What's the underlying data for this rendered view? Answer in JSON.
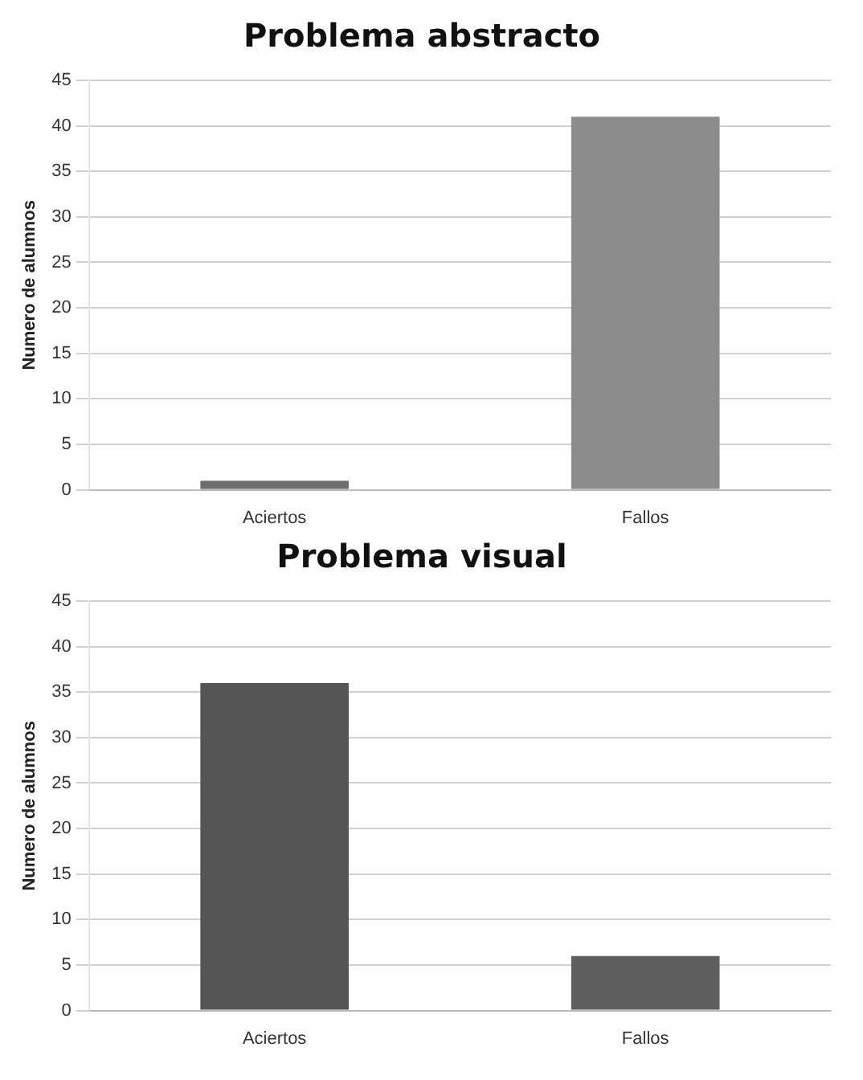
{
  "chart_data": [
    {
      "type": "bar",
      "title": "Problema abstracto",
      "ylabel": "Numero de alumnos",
      "categories": [
        "Aciertos",
        "Fallos"
      ],
      "values": [
        1,
        41
      ],
      "colors": [
        "#6e6e6e",
        "#8c8c8c"
      ],
      "ylim": [
        0,
        45
      ],
      "yticks": [
        0,
        5,
        10,
        15,
        20,
        25,
        30,
        35,
        40,
        45
      ],
      "grid": "y",
      "legend": false
    },
    {
      "type": "bar",
      "title": "Problema visual",
      "ylabel": "Numero de alumnos",
      "categories": [
        "Aciertos",
        "Fallos"
      ],
      "values": [
        36,
        6
      ],
      "colors": [
        "#555555",
        "#5e5e5e"
      ],
      "ylim": [
        0,
        45
      ],
      "yticks": [
        0,
        5,
        10,
        15,
        20,
        25,
        30,
        35,
        40,
        45
      ],
      "grid": "y",
      "legend": false
    }
  ]
}
